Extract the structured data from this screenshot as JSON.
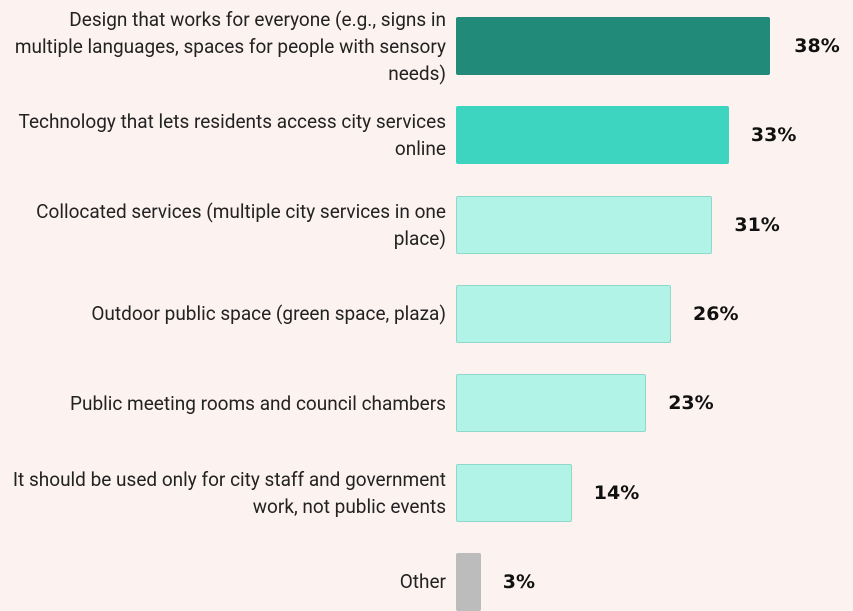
{
  "chart_data": {
    "type": "bar",
    "orientation": "horizontal",
    "categories": [
      "Design that works for everyone (e.g., signs in multiple languages, spaces for people with sensory needs)",
      "Technology that lets residents access city services online",
      "Collocated services (multiple city services in one place)",
      "Outdoor public space (green space, plaza)",
      "Public meeting rooms and council chambers",
      "It should be used only for city staff and government work, not public events",
      "Other"
    ],
    "values": [
      38,
      33,
      31,
      26,
      23,
      14,
      3
    ],
    "value_labels": [
      "38%",
      "33%",
      "31%",
      "26%",
      "23%",
      "14%",
      "3%"
    ],
    "colors": [
      "#218a79",
      "#3dd5bf",
      "#b1f3e7",
      "#b1f3e7",
      "#b1f3e7",
      "#b1f3e7",
      "#bcbcbc"
    ]
  }
}
